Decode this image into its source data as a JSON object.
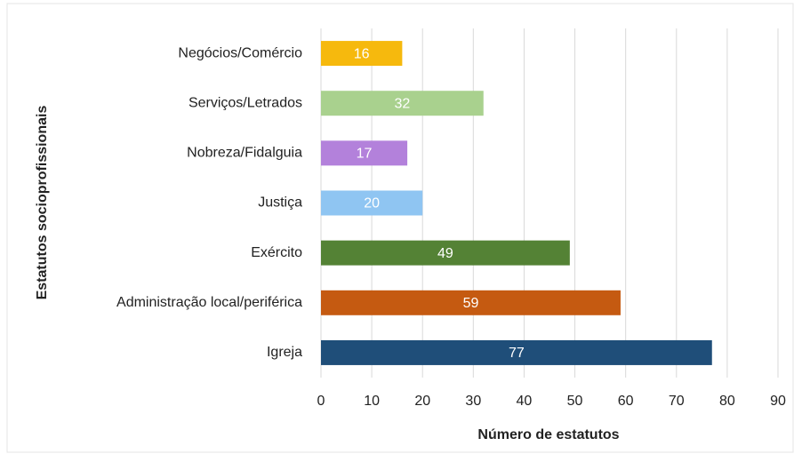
{
  "chart_data": {
    "type": "barh",
    "categories": [
      "Negócios/Comércio",
      "Serviços/Letrados",
      "Nobreza/Fidalguia",
      "Justiça",
      "Exército",
      "Administração local/periférica",
      "Igreja"
    ],
    "values": [
      16,
      32,
      17,
      20,
      49,
      59,
      77
    ],
    "colors": [
      "#f6b90d",
      "#a9d18e",
      "#b381db",
      "#8fc5f2",
      "#548235",
      "#c55a11",
      "#1f4e79"
    ],
    "xlabel": "Número de estatutos",
    "ylabel": "Estatutos socioprofissionais",
    "xlim": [
      0,
      90
    ],
    "xticks": [
      0,
      10,
      20,
      30,
      40,
      50,
      60,
      70,
      80,
      90
    ],
    "grid": true
  }
}
